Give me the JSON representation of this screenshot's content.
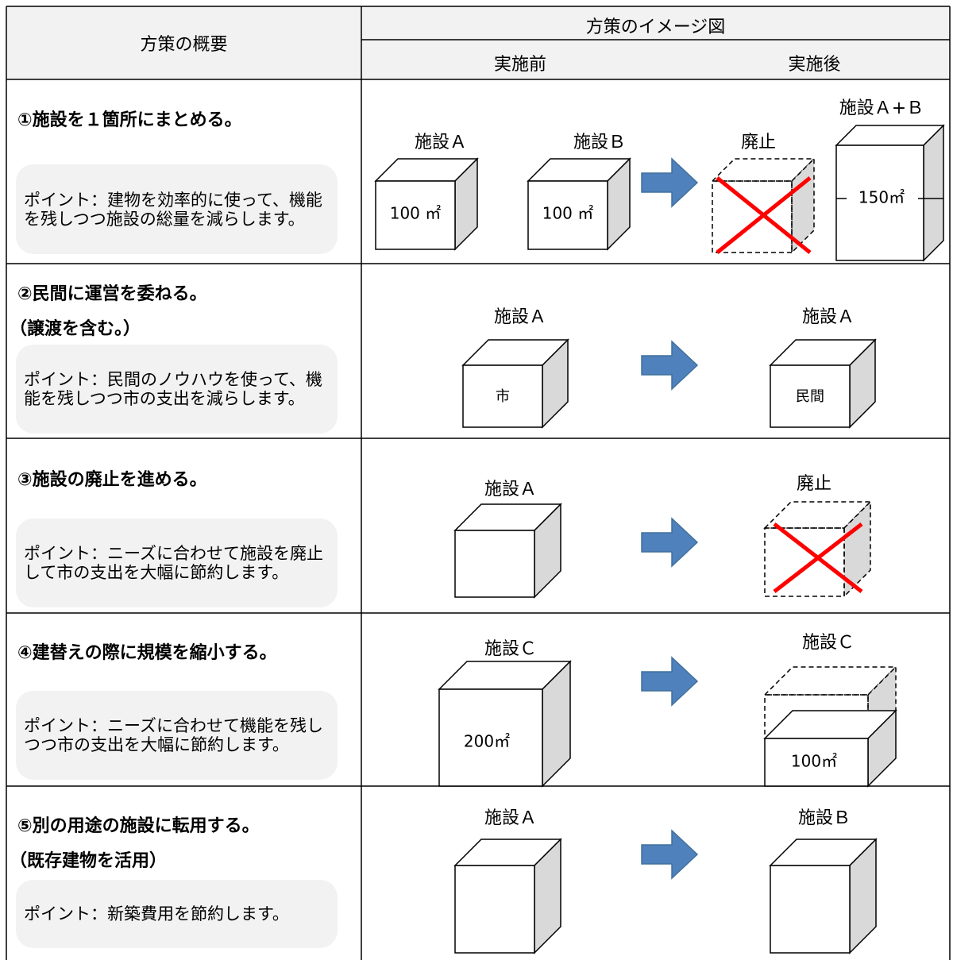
{
  "header": {
    "overview": "方策の概要",
    "image": "方策のイメージ図",
    "before": "実施前",
    "after": "実施後"
  },
  "rows": [
    {
      "title": "①施設を１箇所にまとめる。",
      "point": "ポイント：建物を効率的に使って、機能を残しつつ施設の総量を減らします。",
      "labels": [
        "施設Ａ",
        "施設Ｂ",
        "廃止",
        "施設Ａ+Ｂ",
        "100 ㎡",
        "100 ㎡",
        "150㎡"
      ]
    },
    {
      "title": "②民間に運営を委ねる。",
      "subtitle": "（譲渡を含む。）",
      "point": "ポイント：民間のノウハウを使って、機能を残しつつ市の支出を減らします。",
      "labels": [
        "施設Ａ",
        "施設Ａ",
        "市",
        "民間"
      ]
    },
    {
      "title": "③施設の廃止を進める。",
      "point": "ポイント：ニーズに合わせて施設を廃止して市の支出を大幅に節約します。",
      "labels": [
        "施設Ａ",
        "廃止"
      ]
    },
    {
      "title": "④建替えの際に規模を縮小する。",
      "point": "ポイント：ニーズに合わせて機能を残しつつ市の支出を大幅に節約します。",
      "labels": [
        "施設Ｃ",
        "施設Ｃ",
        "200㎡",
        "100㎡"
      ]
    },
    {
      "title": "⑤別の用途の施設に転用する。",
      "subtitle": "（既存建物を活用）",
      "point": "ポイント：新築費用を節約します。",
      "labels": [
        "施設Ａ",
        "施設Ｂ"
      ]
    }
  ]
}
